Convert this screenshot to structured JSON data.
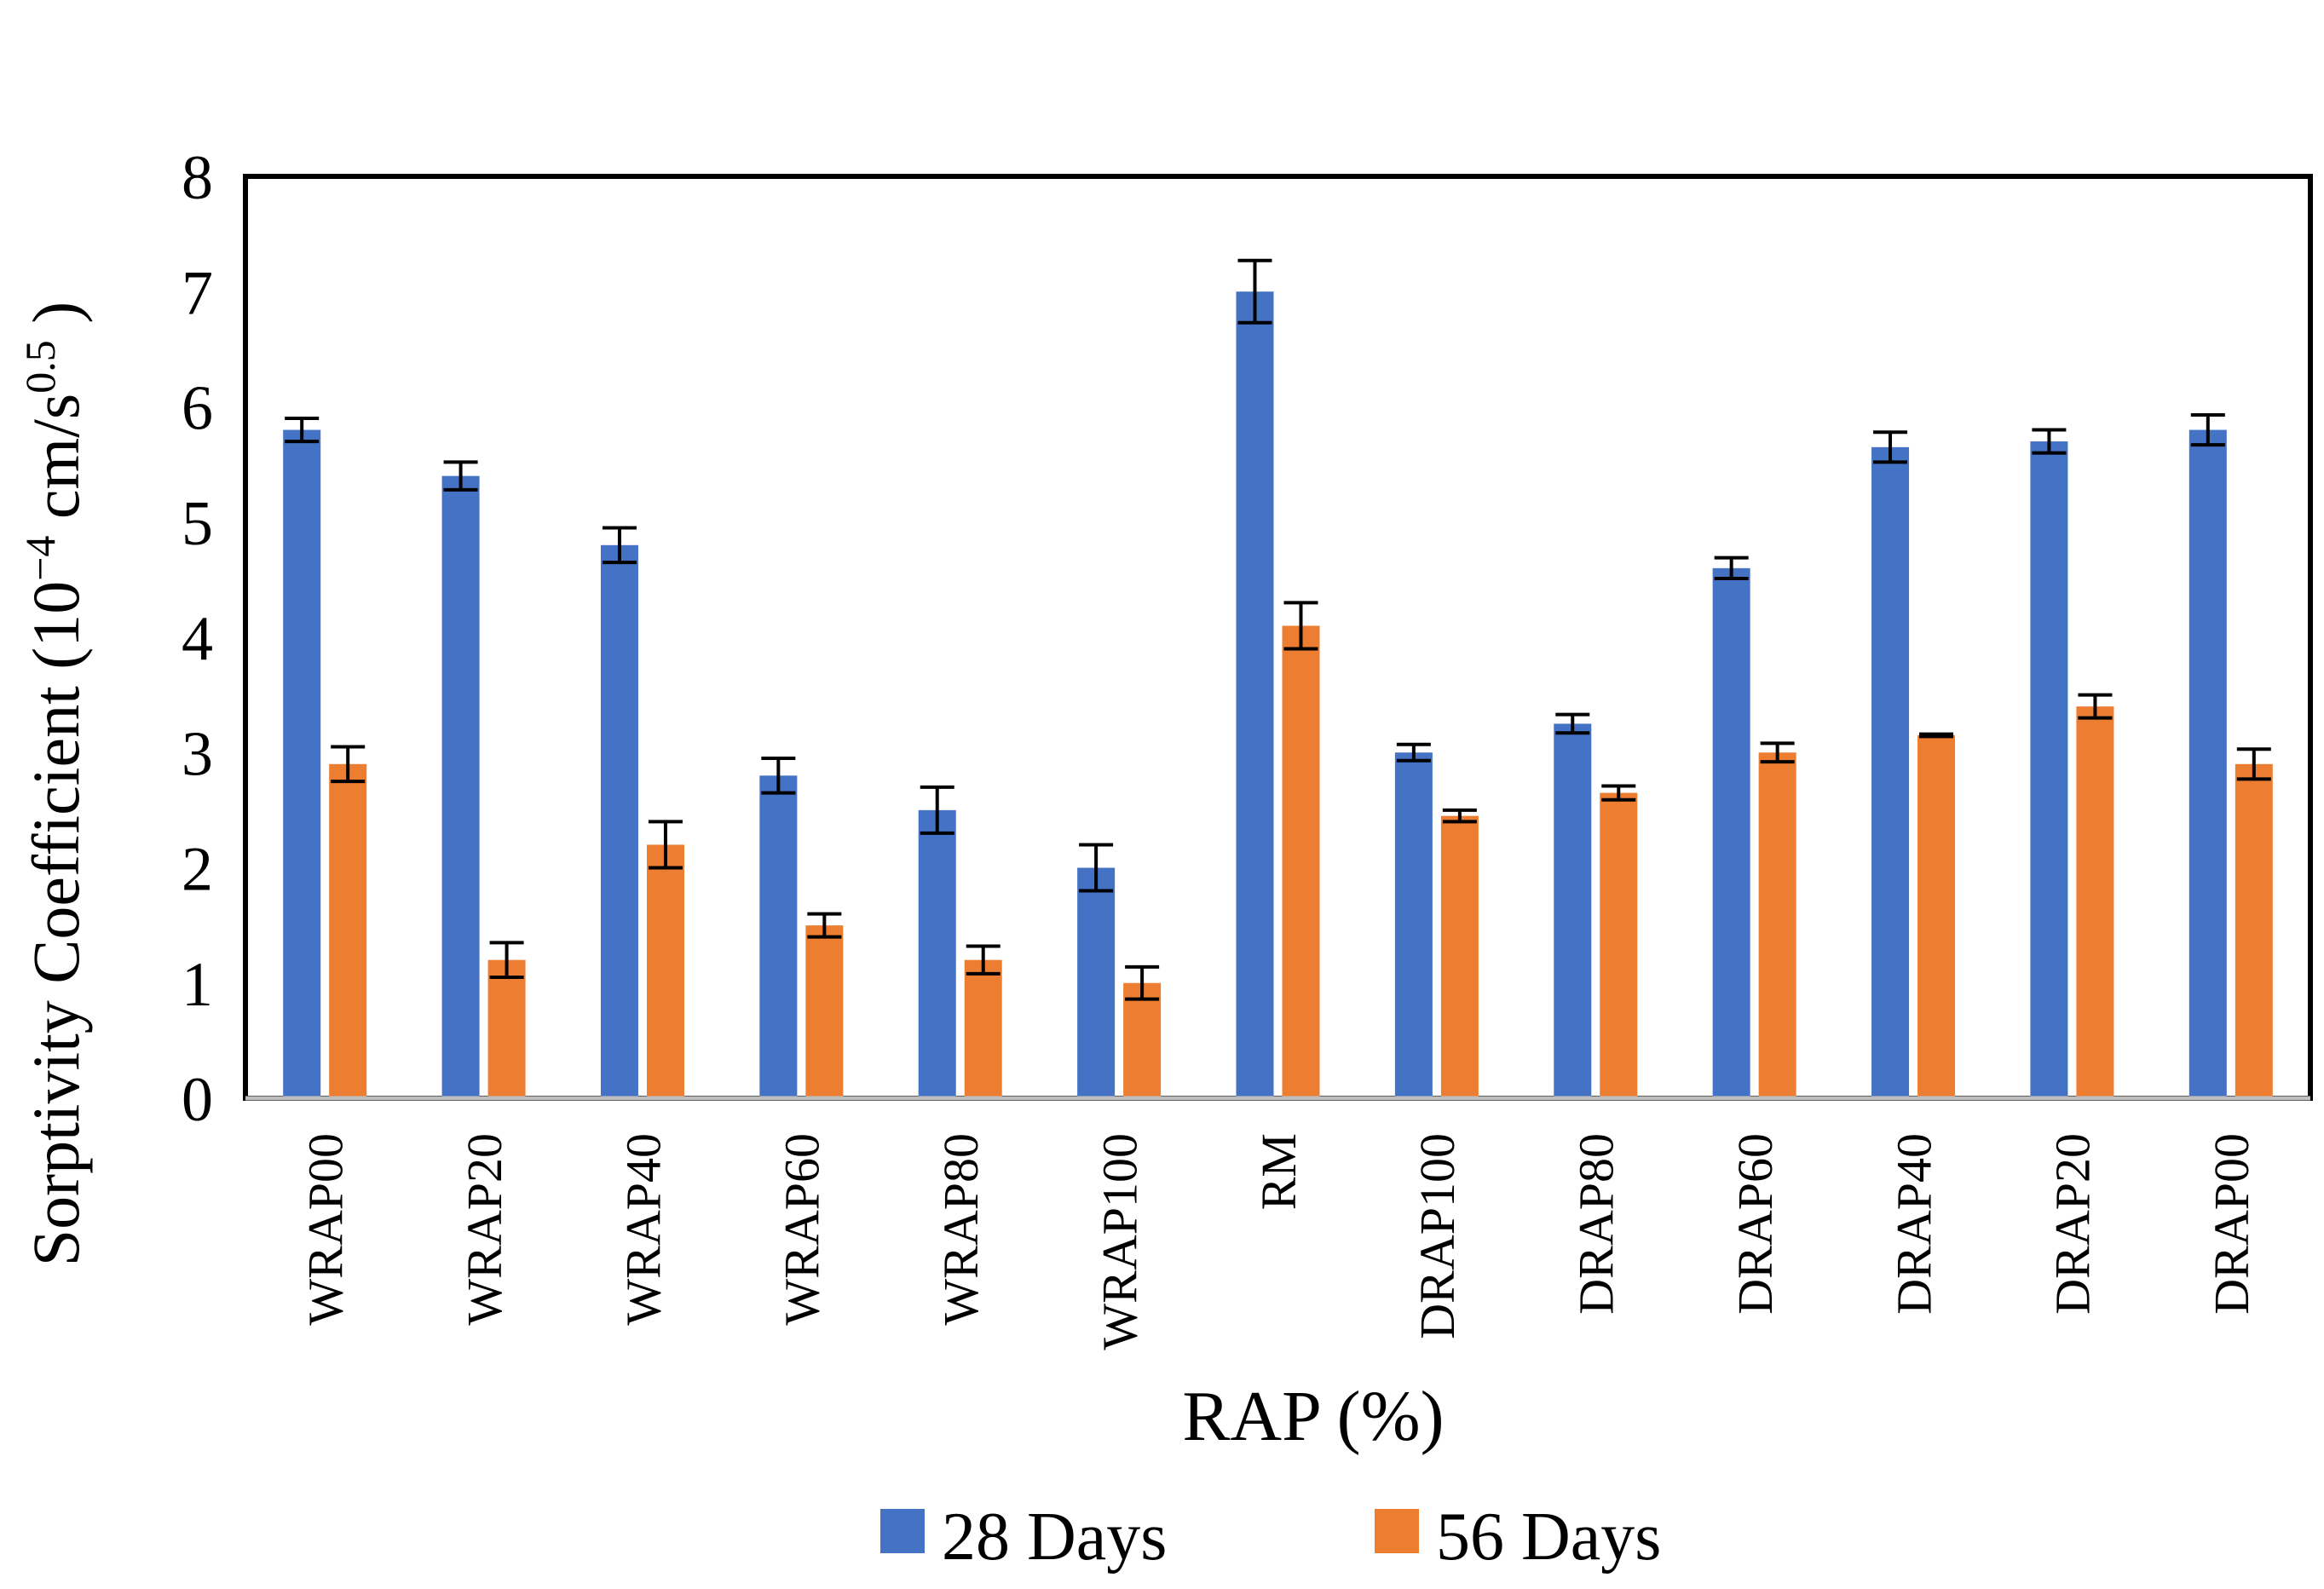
{
  "chart_data": {
    "type": "bar",
    "title": "",
    "xlabel": "RAP (%)",
    "ylabel": "Sorptivity Coefficient (10",
    "ylabel_exp1": "−4",
    "ylabel_mid": " cm/s",
    "ylabel_exp2": "0.5",
    "ylabel_end": " )",
    "ylim": [
      0,
      8
    ],
    "yticks": [
      "0",
      "1",
      "2",
      "3",
      "4",
      "5",
      "6",
      "7",
      "8"
    ],
    "categories": [
      "WRAP00",
      "WRAP20",
      "WRAP40",
      "WRAP60",
      "WRAP80",
      "WRAP100",
      "RM",
      "DRAP100",
      "DRAP80",
      "DRAP60",
      "DRAP40",
      "DRAP20",
      "DRAP00"
    ],
    "series": [
      {
        "name": "28 Days",
        "color": "#4472C4",
        "values": [
          5.8,
          5.4,
          4.8,
          2.8,
          2.5,
          2.0,
          7.0,
          3.0,
          3.25,
          4.6,
          5.65,
          5.7,
          5.8
        ],
        "errors": [
          0.1,
          0.12,
          0.15,
          0.15,
          0.2,
          0.2,
          0.27,
          0.07,
          0.08,
          0.09,
          0.13,
          0.1,
          0.13
        ]
      },
      {
        "name": "56 Days",
        "color": "#ED7D31",
        "values": [
          2.9,
          1.2,
          2.2,
          1.5,
          1.2,
          1.0,
          4.1,
          2.45,
          2.65,
          3.0,
          3.15,
          3.4,
          2.9
        ],
        "errors": [
          0.15,
          0.15,
          0.2,
          0.1,
          0.12,
          0.14,
          0.2,
          0.05,
          0.06,
          0.08,
          0.01,
          0.1,
          0.13
        ]
      }
    ],
    "legend_position": "bottom-center",
    "grid": false
  }
}
